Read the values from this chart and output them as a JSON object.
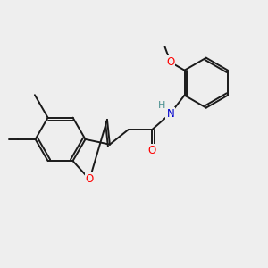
{
  "background_color": "#eeeeee",
  "bond_color": "#1a1a1a",
  "atom_colors": {
    "O": "#ff0000",
    "N": "#0000cc",
    "H": "#4a9090",
    "C": "#1a1a1a"
  },
  "figsize": [
    3.0,
    3.0
  ],
  "dpi": 100
}
